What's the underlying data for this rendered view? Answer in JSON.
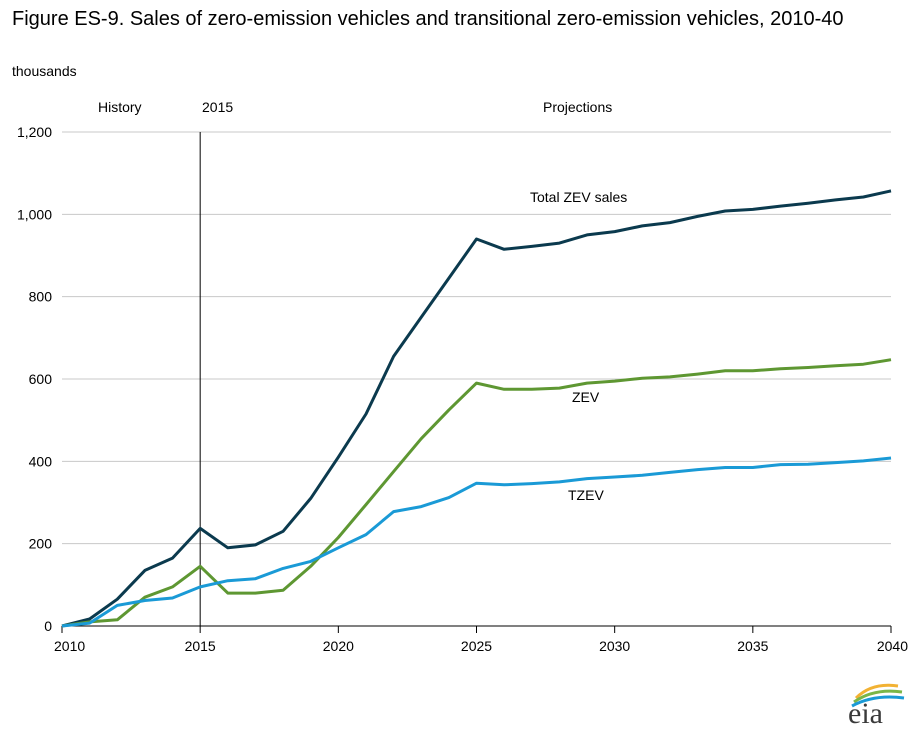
{
  "title": "Figure ES-9. Sales of zero-emission vehicles and transitional zero-emission vehicles, 2010-40",
  "subtitle": "thousands",
  "logo_text": "eia",
  "chart_data": {
    "type": "line",
    "title": "Figure ES-9. Sales of zero-emission vehicles and transitional zero-emission vehicles, 2010-40",
    "ylabel": "thousands",
    "xlim": [
      2010,
      2040
    ],
    "ylim": [
      0,
      1200
    ],
    "x_ticks": [
      2010,
      2015,
      2020,
      2025,
      2030,
      2035,
      2040
    ],
    "x_tick_labels": [
      "2010",
      "2015",
      "2020",
      "2025",
      "2030",
      "2035",
      "2040"
    ],
    "y_ticks": [
      0,
      200,
      400,
      600,
      800,
      1000,
      1200
    ],
    "y_tick_labels": [
      "0",
      "200",
      "400",
      "600",
      "800",
      "1,000",
      "1,200"
    ],
    "grid": "horizontal",
    "divider": {
      "x": 2015,
      "label": "2015"
    },
    "annotations": {
      "history": "History",
      "projections": "Projections"
    },
    "x": [
      2010,
      2011,
      2012,
      2013,
      2014,
      2015,
      2016,
      2017,
      2018,
      2019,
      2020,
      2021,
      2022,
      2023,
      2024,
      2025,
      2026,
      2027,
      2028,
      2029,
      2030,
      2031,
      2032,
      2033,
      2034,
      2035,
      2036,
      2037,
      2038,
      2039,
      2040
    ],
    "series": [
      {
        "name": "Total ZEV sales",
        "color": "#0b3a4e",
        "values": [
          0,
          17,
          65,
          135,
          165,
          237,
          190,
          197,
          230,
          310,
          410,
          515,
          655,
          750,
          845,
          940,
          915,
          922,
          930,
          950,
          958,
          972,
          980,
          995,
          1008,
          1012,
          1020,
          1027,
          1035,
          1042,
          1057
        ]
      },
      {
        "name": "ZEV",
        "color": "#5e9732",
        "values": [
          0,
          10,
          15,
          70,
          95,
          145,
          80,
          80,
          87,
          145,
          215,
          295,
          375,
          455,
          525,
          590,
          575,
          575,
          578,
          590,
          595,
          602,
          605,
          612,
          620,
          620,
          625,
          628,
          632,
          636,
          647
        ]
      },
      {
        "name": "TZEV",
        "color": "#1a9ad6",
        "values": [
          0,
          7,
          50,
          62,
          68,
          95,
          110,
          115,
          140,
          157,
          190,
          222,
          278,
          290,
          312,
          347,
          343,
          346,
          350,
          358,
          362,
          366,
          373,
          380,
          385,
          385,
          392,
          393,
          397,
          401,
          408
        ]
      }
    ]
  }
}
